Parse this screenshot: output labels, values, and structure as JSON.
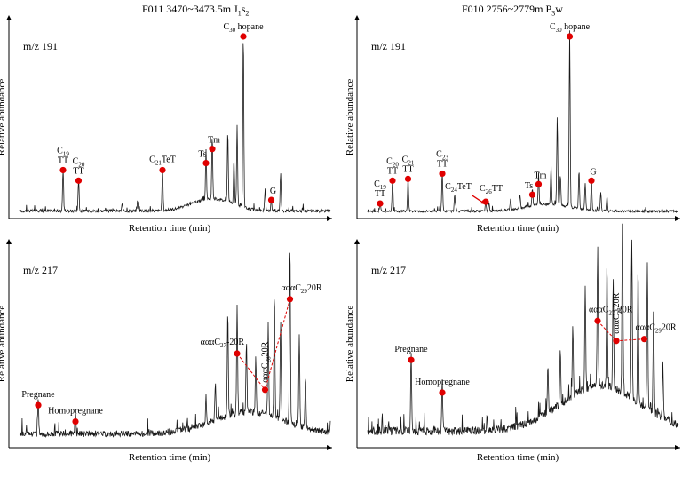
{
  "panels": [
    {
      "id": "p1",
      "title": {
        "well": "F011 3470~3473.5m J",
        "sub": "1",
        "tail": "s",
        "sub2": "2"
      },
      "mz": "m/z 191",
      "ylabel": "Relative abundance",
      "xlabel": "Retention time (min)"
    },
    {
      "id": "p2",
      "title": {
        "well": "F010 2756~2779m P",
        "sub": "3",
        "tail": "w",
        "sub2": ""
      },
      "mz": "m/z 191",
      "ylabel": "Relative abundance",
      "xlabel": "Retention time (min)"
    },
    {
      "id": "p3",
      "title": null,
      "mz": "m/z 217",
      "ylabel": "Relative abundance",
      "xlabel": "Retention time (min)"
    },
    {
      "id": "p4",
      "title": null,
      "mz": "m/z 217",
      "ylabel": "Relative abundance",
      "xlabel": "Retention time (min)"
    }
  ],
  "colors": {
    "marker": "#e00000",
    "trace": "#1a1a1a",
    "axis": "#000000"
  },
  "chart_data": [
    {
      "type": "line",
      "panel": "p1",
      "title": "F011 3470~3473.5m J1s2",
      "subtitle": "m/z 191",
      "xlabel": "Retention time (min)",
      "ylabel": "Relative abundance",
      "xlim": [
        0,
        100
      ],
      "ylim": [
        0,
        100
      ],
      "peaks": [
        {
          "x": 14,
          "y": 24,
          "label": "C19 TT",
          "parts": [
            [
              "C",
              "19",
              ""
            ],
            [
              "TT",
              "",
              ""
            ]
          ]
        },
        {
          "x": 19,
          "y": 18,
          "label": "C20 TT",
          "parts": [
            [
              "C",
              "20",
              ""
            ],
            [
              "TT",
              "",
              ""
            ]
          ]
        },
        {
          "x": 46,
          "y": 24,
          "label": "C21TeT",
          "parts": [
            [
              "C",
              "21",
              "TeT"
            ]
          ]
        },
        {
          "x": 60,
          "y": 28,
          "label": "Ts",
          "parts": [
            [
              "Ts",
              "",
              ""
            ]
          ]
        },
        {
          "x": 62,
          "y": 36,
          "label": "Tm",
          "parts": [
            [
              "Tm",
              "",
              ""
            ]
          ]
        },
        {
          "x": 72,
          "y": 100,
          "label": "C30 hopane",
          "parts": [
            [
              "C",
              "30",
              " hopane"
            ]
          ]
        },
        {
          "x": 81,
          "y": 7,
          "label": "G",
          "parts": [
            [
              "G",
              "",
              ""
            ]
          ]
        }
      ],
      "extra_peaks": [
        {
          "x": 67,
          "y": 40
        },
        {
          "x": 70,
          "y": 45
        },
        {
          "x": 69,
          "y": 25
        },
        {
          "x": 79,
          "y": 12
        },
        {
          "x": 84,
          "y": 22
        },
        {
          "x": 33,
          "y": 4
        },
        {
          "x": 38,
          "y": 5
        }
      ],
      "hump": {
        "center": 62,
        "width": 9,
        "height": 7
      },
      "baseline": 1.5,
      "noise": 1.6,
      "annotations": []
    },
    {
      "type": "line",
      "panel": "p2",
      "title": "F010 2756~2779m P3w",
      "subtitle": "m/z 191",
      "xlabel": "Retention time (min)",
      "ylabel": "Relative abundance",
      "xlim": [
        0,
        100
      ],
      "ylim": [
        0,
        100
      ],
      "peaks": [
        {
          "x": 4,
          "y": 5,
          "label": "C19 TT",
          "parts": [
            [
              "C",
              "19",
              ""
            ],
            [
              "TT",
              "",
              ""
            ]
          ]
        },
        {
          "x": 8,
          "y": 18,
          "label": "C20 TT",
          "parts": [
            [
              "C",
              "20",
              ""
            ],
            [
              "TT",
              "",
              ""
            ]
          ]
        },
        {
          "x": 13,
          "y": 19,
          "label": "C21 TT",
          "parts": [
            [
              "C",
              "21",
              ""
            ],
            [
              "TT",
              "",
              ""
            ]
          ]
        },
        {
          "x": 24,
          "y": 22,
          "label": "C23 TT",
          "parts": [
            [
              "C",
              "23",
              ""
            ],
            [
              "TT",
              "",
              ""
            ]
          ]
        },
        {
          "x": 36,
          "y": 8,
          "label": "C24TeT",
          "parts": [
            [
              "C",
              "24",
              "TeT"
            ]
          ],
          "labelOnly": true
        },
        {
          "x": 38,
          "y": 6,
          "label": "C26TT",
          "parts": [
            [
              "C",
              "26",
              "TT"
            ]
          ]
        },
        {
          "x": 53,
          "y": 10,
          "label": "Ts",
          "parts": [
            [
              "Ts",
              "",
              ""
            ]
          ]
        },
        {
          "x": 55,
          "y": 16,
          "label": "Tm",
          "parts": [
            [
              "Tm",
              "",
              ""
            ]
          ]
        },
        {
          "x": 65,
          "y": 100,
          "label": "C30 hopane",
          "parts": [
            [
              "C",
              "30",
              " hopane"
            ]
          ]
        },
        {
          "x": 72,
          "y": 18,
          "label": "G",
          "parts": [
            [
              "G",
              "",
              ""
            ]
          ]
        }
      ],
      "extra_peaks": [
        {
          "x": 61,
          "y": 50
        },
        {
          "x": 59,
          "y": 22
        },
        {
          "x": 62,
          "y": 18
        },
        {
          "x": 68,
          "y": 22
        },
        {
          "x": 70,
          "y": 15
        },
        {
          "x": 75,
          "y": 10
        },
        {
          "x": 77,
          "y": 8
        },
        {
          "x": 28,
          "y": 10
        },
        {
          "x": 46,
          "y": 6
        },
        {
          "x": 49,
          "y": 8
        },
        {
          "x": 39,
          "y": 5
        }
      ],
      "hump": {
        "center": 58,
        "width": 10,
        "height": 4
      },
      "baseline": 1.5,
      "noise": 1.3,
      "annotations": [
        {
          "type": "arrow",
          "from_peak": "C24TeT",
          "to_x": 38.0,
          "to_y": 6
        }
      ]
    },
    {
      "type": "line",
      "panel": "p3",
      "subtitle": "m/z 217",
      "xlabel": "Retention time (min)",
      "ylabel": "Relative abundance",
      "xlim": [
        0,
        100
      ],
      "ylim": [
        0,
        100
      ],
      "peaks": [
        {
          "x": 6,
          "y": 20,
          "label": "Pregnane",
          "parts": [
            [
              "Pregnane",
              "",
              ""
            ]
          ]
        },
        {
          "x": 18,
          "y": 11,
          "label": "Homopregnane",
          "parts": [
            [
              "Homopregnane",
              "",
              ""
            ]
          ]
        },
        {
          "x": 70,
          "y": 60,
          "label": "αααC27-20R",
          "parts": [
            [
              "αααC",
              "27",
              "-20R"
            ]
          ]
        },
        {
          "x": 80,
          "y": 50,
          "label": "αααC28 20R",
          "parts": [
            [
              "αααC",
              "28",
              "20R"
            ]
          ],
          "rotate": true
        },
        {
          "x": 87,
          "y": 100,
          "label": "αααC29 20R",
          "parts": [
            [
              "αααC",
              "29",
              "20R"
            ]
          ]
        }
      ],
      "dots": [
        {
          "peak": "αααC27-20R",
          "x": 70,
          "y": 50
        },
        {
          "peak": "αααC28 20R",
          "x": 79,
          "y": 30
        },
        {
          "peak": "αααC29 20R",
          "x": 87,
          "y": 80
        }
      ],
      "extra_peaks": [
        {
          "x": 67,
          "y": 58
        },
        {
          "x": 73,
          "y": 40
        },
        {
          "x": 76,
          "y": 30
        },
        {
          "x": 82,
          "y": 70
        },
        {
          "x": 84,
          "y": 55
        },
        {
          "x": 90,
          "y": 50
        },
        {
          "x": 92,
          "y": 30
        },
        {
          "x": 60,
          "y": 15
        },
        {
          "x": 63,
          "y": 20
        }
      ],
      "hump": {
        "center": 74,
        "width": 16,
        "height": 12
      },
      "baseline": 4,
      "noise": 3.5,
      "annotations": [
        {
          "type": "dashed-connector",
          "between": [
            "αααC27-20R",
            "αααC28 20R",
            "αααC29 20R"
          ]
        }
      ]
    },
    {
      "type": "line",
      "panel": "p4",
      "subtitle": "m/z 217",
      "xlabel": "Retention time (min)",
      "ylabel": "Relative abundance",
      "xlim": [
        0,
        100
      ],
      "ylim": [
        0,
        100
      ],
      "peaks": [
        {
          "x": 14,
          "y": 45,
          "label": "Pregnane",
          "parts": [
            [
              "Pregnane",
              "",
              ""
            ]
          ]
        },
        {
          "x": 24,
          "y": 27,
          "label": "Homopregnane",
          "parts": [
            [
              "Homopregnane",
              "",
              ""
            ]
          ]
        },
        {
          "x": 74,
          "y": 78,
          "label": "αααC27-20R",
          "parts": [
            [
              "αααC",
              "27",
              "-20R"
            ]
          ]
        },
        {
          "x": 82,
          "y": 100,
          "label": "αααC28 20R",
          "parts": [
            [
              "αααC",
              "28",
              "20R"
            ]
          ],
          "rotate": true
        },
        {
          "x": 90,
          "y": 82,
          "label": "αααC29 20R",
          "parts": [
            [
              "αααC",
              "29",
              "20R"
            ]
          ]
        }
      ],
      "dots": [
        {
          "peak": "αααC27-20R",
          "x": 74,
          "y": 68
        },
        {
          "peak": "αααC28 20R",
          "x": 80,
          "y": 57
        },
        {
          "peak": "αααC29 20R",
          "x": 89,
          "y": 58
        }
      ],
      "extra_peaks": [
        {
          "x": 77,
          "y": 70
        },
        {
          "x": 79,
          "y": 60
        },
        {
          "x": 85,
          "y": 88
        },
        {
          "x": 87,
          "y": 75
        },
        {
          "x": 92,
          "y": 60
        },
        {
          "x": 70,
          "y": 55
        },
        {
          "x": 66,
          "y": 40
        },
        {
          "x": 62,
          "y": 32
        },
        {
          "x": 58,
          "y": 25
        },
        {
          "x": 95,
          "y": 30
        }
      ],
      "hump": {
        "center": 75,
        "width": 18,
        "height": 25
      },
      "baseline": 5,
      "noise": 4.5,
      "annotations": [
        {
          "type": "dashed-connector",
          "between": [
            "αααC27-20R",
            "αααC28 20R",
            "αααC29 20R"
          ]
        }
      ]
    }
  ]
}
